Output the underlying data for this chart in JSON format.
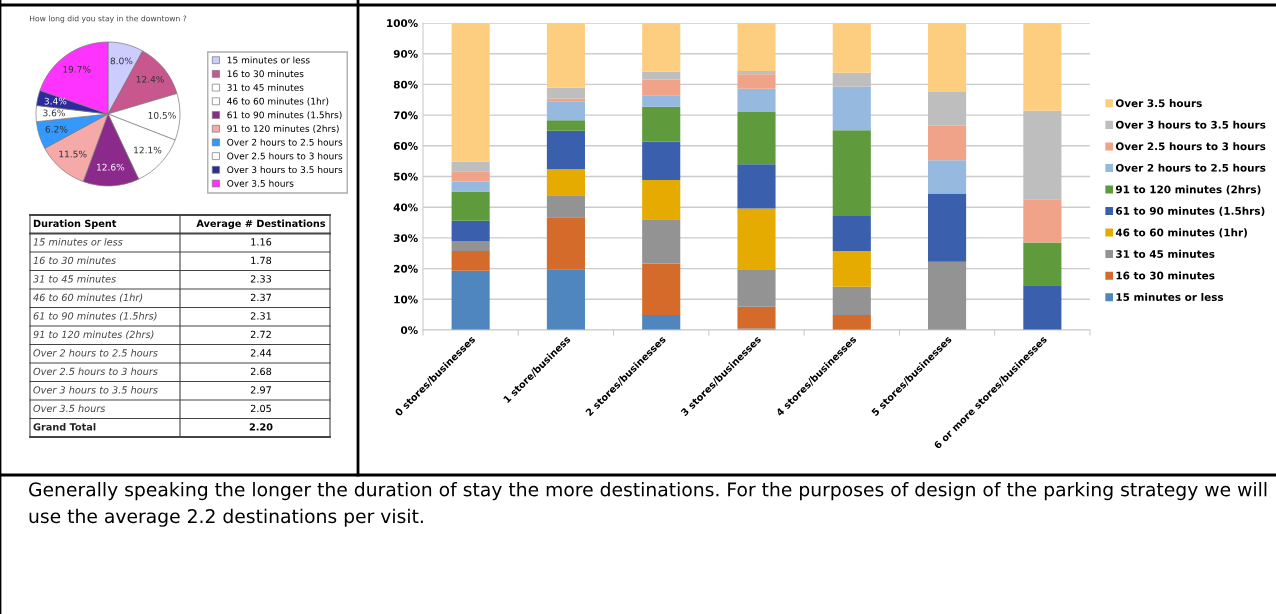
{
  "chart_data": [
    {
      "type": "pie",
      "title": "How long did you stay in the downtown ?",
      "categories": [
        "15 minutes or less",
        "16 to 30 minutes",
        "31 to 45 minutes",
        "46 to 60 minutes (1hr)",
        "61 to 90 minutes (1.5hrs)",
        "91 to 120 minutes (2hrs)",
        "Over 2 hours to 2.5 hours",
        "Over 2.5 hours to 3 hours",
        "Over 3 hours to 3.5 hours",
        "Over 3.5 hours"
      ],
      "values": [
        8.0,
        12.4,
        10.5,
        12.1,
        12.6,
        11.5,
        6.2,
        3.6,
        3.4,
        19.7
      ],
      "value_labels": [
        "8.0%",
        "12.4%",
        "10.5%",
        "12.1%",
        "12.6%",
        "11.5%",
        "6.2%",
        "3.6%",
        "3.4%",
        "19.7%"
      ],
      "colors": [
        "#ccccff",
        "#c8578e",
        "#ffffff",
        "#ffffff",
        "#8b2a8b",
        "#f6a9a9",
        "#3399ff",
        "#ffffff",
        "#2b2b9c",
        "#ff33ff"
      ],
      "legend": "right"
    },
    {
      "type": "other",
      "annotations": [
        "Duration Spent",
        "Average # Destinations"
      ],
      "categories": [
        "15 minutes or less",
        "16 to 30 minutes",
        "31 to 45 minutes",
        "46 to 60 minutes (1hr)",
        "61 to 90 minutes (1.5hrs)",
        "91 to 120 minutes (2hrs)",
        "Over 2 hours to 2.5 hours",
        "Over 2.5 hours to 3 hours",
        "Over 3 hours to 3.5 hours",
        "Over 3.5 hours",
        "Grand Total"
      ],
      "value_labels": [
        "1.16",
        "1.78",
        "2.33",
        "2.37",
        "2.31",
        "2.72",
        "2.44",
        "2.68",
        "2.97",
        "2.05",
        "2.20"
      ]
    },
    {
      "type": "bar",
      "stacked": true,
      "categories": [
        "0 stores/businesses",
        "1 store/business",
        "2 stores/businesses",
        "3 stores/businesses",
        "4 stores/businesses",
        "5 stores/businesses",
        "6 or more stores/businesses"
      ],
      "ylim": [
        0,
        100
      ],
      "yticks": [
        {
          "value": 0,
          "label": "0%"
        },
        {
          "value": 10,
          "label": "10%"
        },
        {
          "value": 20,
          "label": "20%"
        },
        {
          "value": 30,
          "label": "30%"
        },
        {
          "value": 40,
          "label": "40%"
        },
        {
          "value": 50,
          "label": "50%"
        },
        {
          "value": 60,
          "label": "60%"
        },
        {
          "value": 70,
          "label": "70%"
        },
        {
          "value": 80,
          "label": "80%"
        },
        {
          "value": 90,
          "label": "90%"
        },
        {
          "value": 100,
          "label": "100%"
        }
      ],
      "grid": "y",
      "legend": "right",
      "series": [
        {
          "name": "15 minutes or less",
          "color": "#4e86bd",
          "values": [
            19.3,
            19.8,
            4.9,
            0.5,
            0,
            0,
            0
          ]
        },
        {
          "name": "16 to 30 minutes",
          "color": "#d46b2a",
          "values": [
            6.4,
            16.9,
            16.8,
            7.1,
            4.9,
            0,
            0
          ]
        },
        {
          "name": "31 to 45 minutes",
          "color": "#939393",
          "values": [
            3.3,
            7.2,
            14.4,
            12.2,
            9.2,
            22.2,
            0
          ]
        },
        {
          "name": "46 to 60 minutes (1hr)",
          "color": "#e5ab00",
          "values": [
            0,
            8.5,
            12.8,
            19.8,
            11.6,
            0,
            0
          ]
        },
        {
          "name": "61 to 90 minutes (1.5hrs)",
          "color": "#3a5fad",
          "values": [
            6.6,
            12.5,
            12.4,
            14.4,
            11.4,
            22.3,
            14.6
          ]
        },
        {
          "name": "91 to 120 minutes (2hrs)",
          "color": "#5f9a3c",
          "values": [
            9.5,
            3.4,
            11.4,
            17.0,
            28.0,
            0,
            13.9
          ]
        },
        {
          "name": "Over 2 hours to 2.5 hours",
          "color": "#96b9e0",
          "values": [
            3.2,
            6.2,
            3.8,
            7.6,
            14.1,
            10.8,
            0
          ]
        },
        {
          "name": "Over 2.5 hours to 3 hours",
          "color": "#f0a388",
          "values": [
            3.4,
            0.9,
            5.1,
            4.7,
            0,
            11.2,
            14.1
          ]
        },
        {
          "name": "Over 3 hours to 3.5 hours",
          "color": "#bebebe",
          "values": [
            3.2,
            3.5,
            2.5,
            1.1,
            4.6,
            11.0,
            28.8
          ]
        },
        {
          "name": "Over 3.5 hours",
          "color": "#fdcd80",
          "values": [
            45.1,
            21.1,
            15.9,
            15.6,
            16.2,
            22.5,
            28.6
          ]
        }
      ]
    },
    {
      "type": "other",
      "annotations": [
        "Generally speaking the longer the duration of stay the more destinations. For the purposes of design of the parking strategy we will use the average 2.2 destinations per visit."
      ]
    }
  ]
}
